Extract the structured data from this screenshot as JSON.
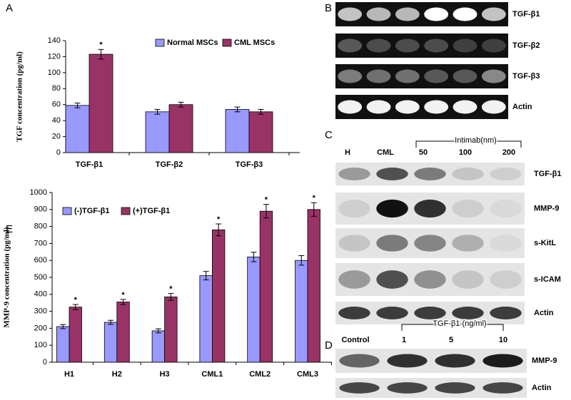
{
  "chart_data": [
    {
      "type": "bar",
      "panel": "A",
      "y_label": "TGF concentration (pg/ml)",
      "categories": [
        "TGF-β1",
        "TGF-β2",
        "TGF-β3"
      ],
      "series": [
        {
          "name": "Normal MSCs",
          "color": "#9999ff",
          "values": [
            59,
            51,
            54
          ],
          "errors": [
            3,
            3,
            3
          ]
        },
        {
          "name": "CML MSCs",
          "color": "#993366",
          "values": [
            123,
            60,
            51
          ],
          "errors": [
            6,
            3,
            3
          ]
        }
      ],
      "ylim": [
        0,
        140
      ],
      "yticks": [
        0,
        20,
        40,
        60,
        80,
        100,
        120,
        140
      ],
      "annotations": [
        {
          "text": "*",
          "category": "TGF-β1",
          "series": "CML MSCs"
        }
      ]
    },
    {
      "type": "bar",
      "panel": "E",
      "y_label": "MMP-9 concentration (pg/ml)",
      "categories": [
        "H1",
        "H2",
        "H3",
        "CML1",
        "CML2",
        "CML3"
      ],
      "series": [
        {
          "name": "(-)TGF-β1",
          "color": "#9999ff",
          "values": [
            210,
            235,
            185,
            510,
            620,
            600
          ],
          "errors": [
            12,
            12,
            12,
            25,
            28,
            28
          ]
        },
        {
          "name": "(+)TGF-β1",
          "color": "#993366",
          "values": [
            325,
            355,
            385,
            780,
            890,
            900
          ],
          "errors": [
            15,
            15,
            20,
            35,
            40,
            40
          ]
        }
      ],
      "ylim": [
        0,
        1000
      ],
      "yticks": [
        0,
        100,
        200,
        300,
        400,
        500,
        600,
        700,
        800,
        900,
        1000
      ],
      "annotations": [
        {
          "text": "*",
          "category": "H1",
          "series": "(+)TGF-β1"
        },
        {
          "text": "*",
          "category": "H2",
          "series": "(+)TGF-β1"
        },
        {
          "text": "*",
          "category": "H3",
          "series": "(+)TGF-β1"
        },
        {
          "text": "*",
          "category": "CML1",
          "series": "(+)TGF-β1"
        },
        {
          "text": "*",
          "category": "CML2",
          "series": "(+)TGF-β1"
        },
        {
          "text": "*",
          "category": "CML3",
          "series": "(+)TGF-β1"
        }
      ]
    }
  ],
  "blots": [
    {
      "panel": "B",
      "rows": [
        "TGF-β1",
        "TGF-β2",
        "TGF-β3",
        "Actin"
      ]
    },
    {
      "panel": "C",
      "header": [
        "H",
        "CML",
        "50",
        "100",
        "200"
      ],
      "bracket": "Intimab(nm)",
      "rows": [
        "TGF-β1",
        "MMP-9",
        "s-KitL",
        "s-ICAM",
        "Actin"
      ]
    },
    {
      "panel": "D",
      "header": [
        "Control",
        "1",
        "5",
        "10"
      ],
      "bracket": "TGF-β1  (ng/ml)",
      "rows": [
        "MMP-9",
        "Actin"
      ]
    }
  ]
}
